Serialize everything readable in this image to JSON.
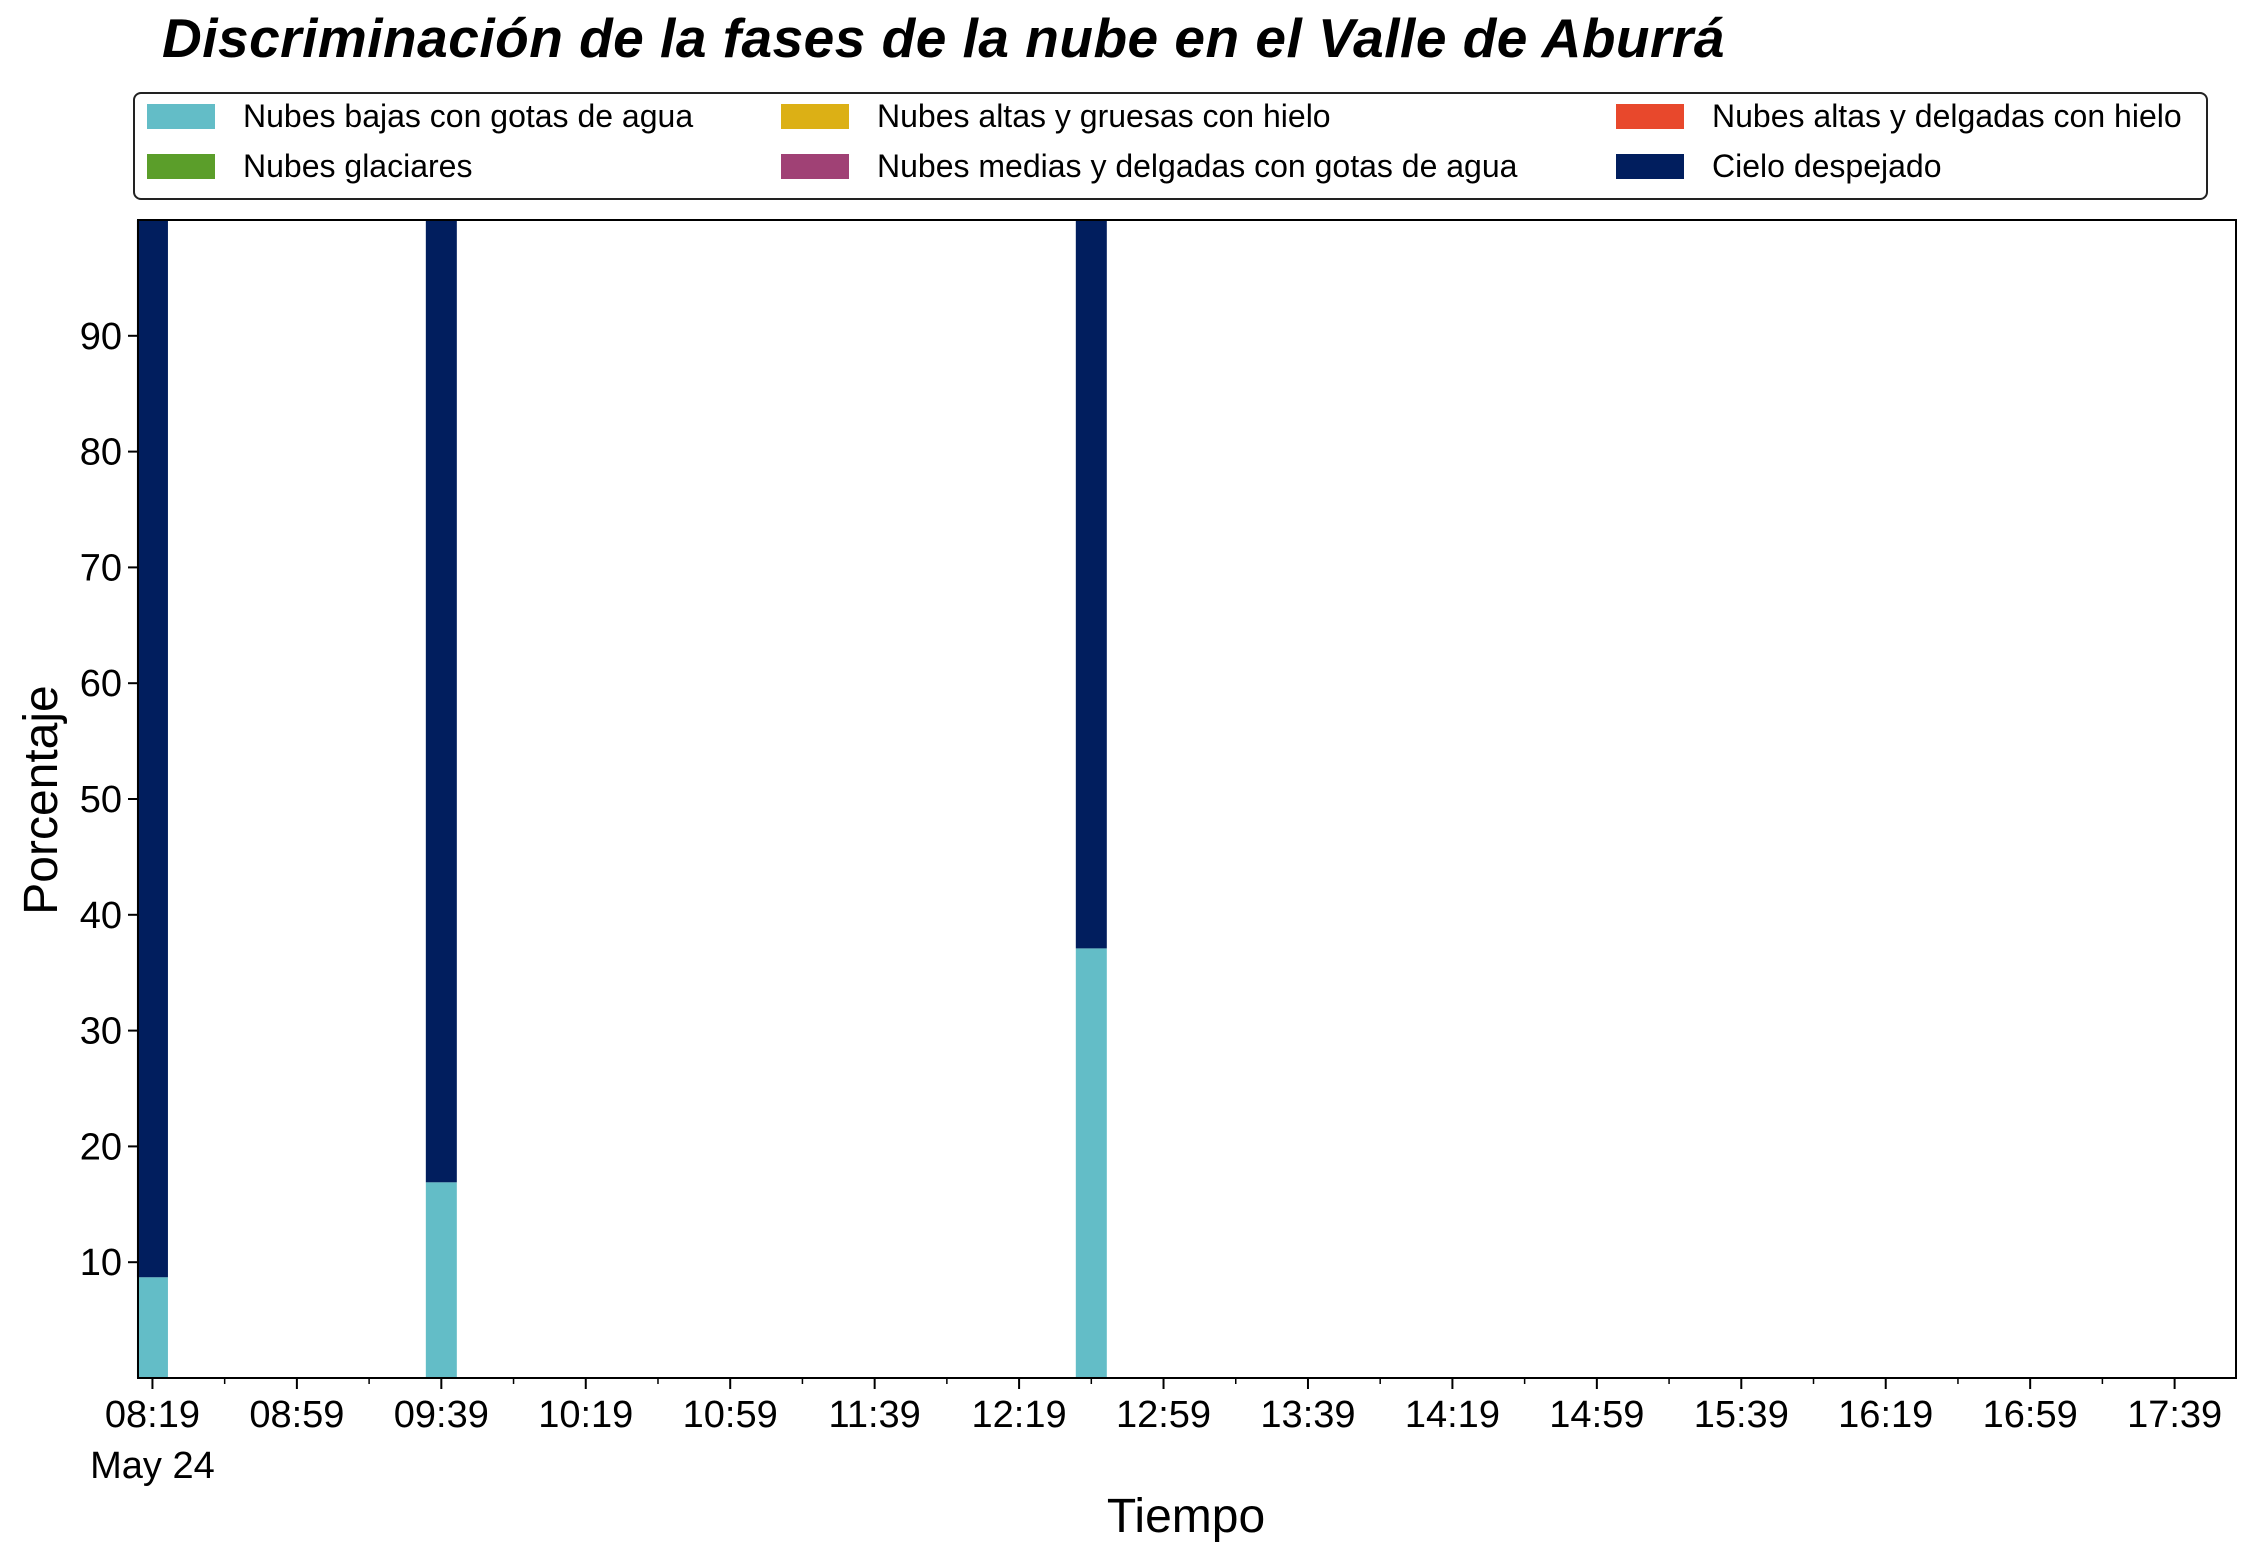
{
  "chart_data": {
    "type": "bar",
    "stacked": true,
    "title": "Discriminación de la fases de la nube en el Valle de Aburrá",
    "xlabel": "Tiempo",
    "ylabel": "Porcentaje",
    "ylim": [
      0,
      100
    ],
    "yticks": [
      10,
      20,
      30,
      40,
      50,
      60,
      70,
      80,
      90
    ],
    "xlim_minutes": [
      495,
      1076
    ],
    "xtick_minutes": [
      499,
      539,
      579,
      619,
      659,
      699,
      739,
      779,
      819,
      859,
      899,
      939,
      979,
      1019,
      1059
    ],
    "xtick_labels": [
      "08:19",
      "08:59",
      "09:39",
      "10:19",
      "10:59",
      "11:39",
      "12:19",
      "12:59",
      "13:39",
      "14:19",
      "14:59",
      "15:39",
      "16:19",
      "16:59",
      "17:39"
    ],
    "xtick_sublabel": "May 24",
    "grid": false,
    "legend_position": "top",
    "bar_times": [
      "08:19",
      "09:39",
      "12:39"
    ],
    "bar_minutes": [
      499,
      579,
      759
    ],
    "series": [
      {
        "name": "Nubes bajas con gotas de agua",
        "color": "#63bdc7",
        "values": [
          8.7,
          16.9,
          37.1
        ]
      },
      {
        "name": "Nubes glaciares",
        "color": "#5b9e2a",
        "values": [
          0,
          0,
          0
        ]
      },
      {
        "name": "Nubes altas y gruesas con hielo",
        "color": "#dcb015",
        "values": [
          0,
          0,
          0
        ]
      },
      {
        "name": "Nubes medias y delgadas con gotas de agua",
        "color": "#a04175",
        "values": [
          0,
          0,
          0
        ]
      },
      {
        "name": "Nubes altas y delgadas con hielo",
        "color": "#e8482c",
        "values": [
          0,
          0,
          0
        ]
      },
      {
        "name": "Cielo despejado",
        "color": "#011e5e",
        "values": [
          91.3,
          83.1,
          62.9
        ]
      }
    ]
  }
}
